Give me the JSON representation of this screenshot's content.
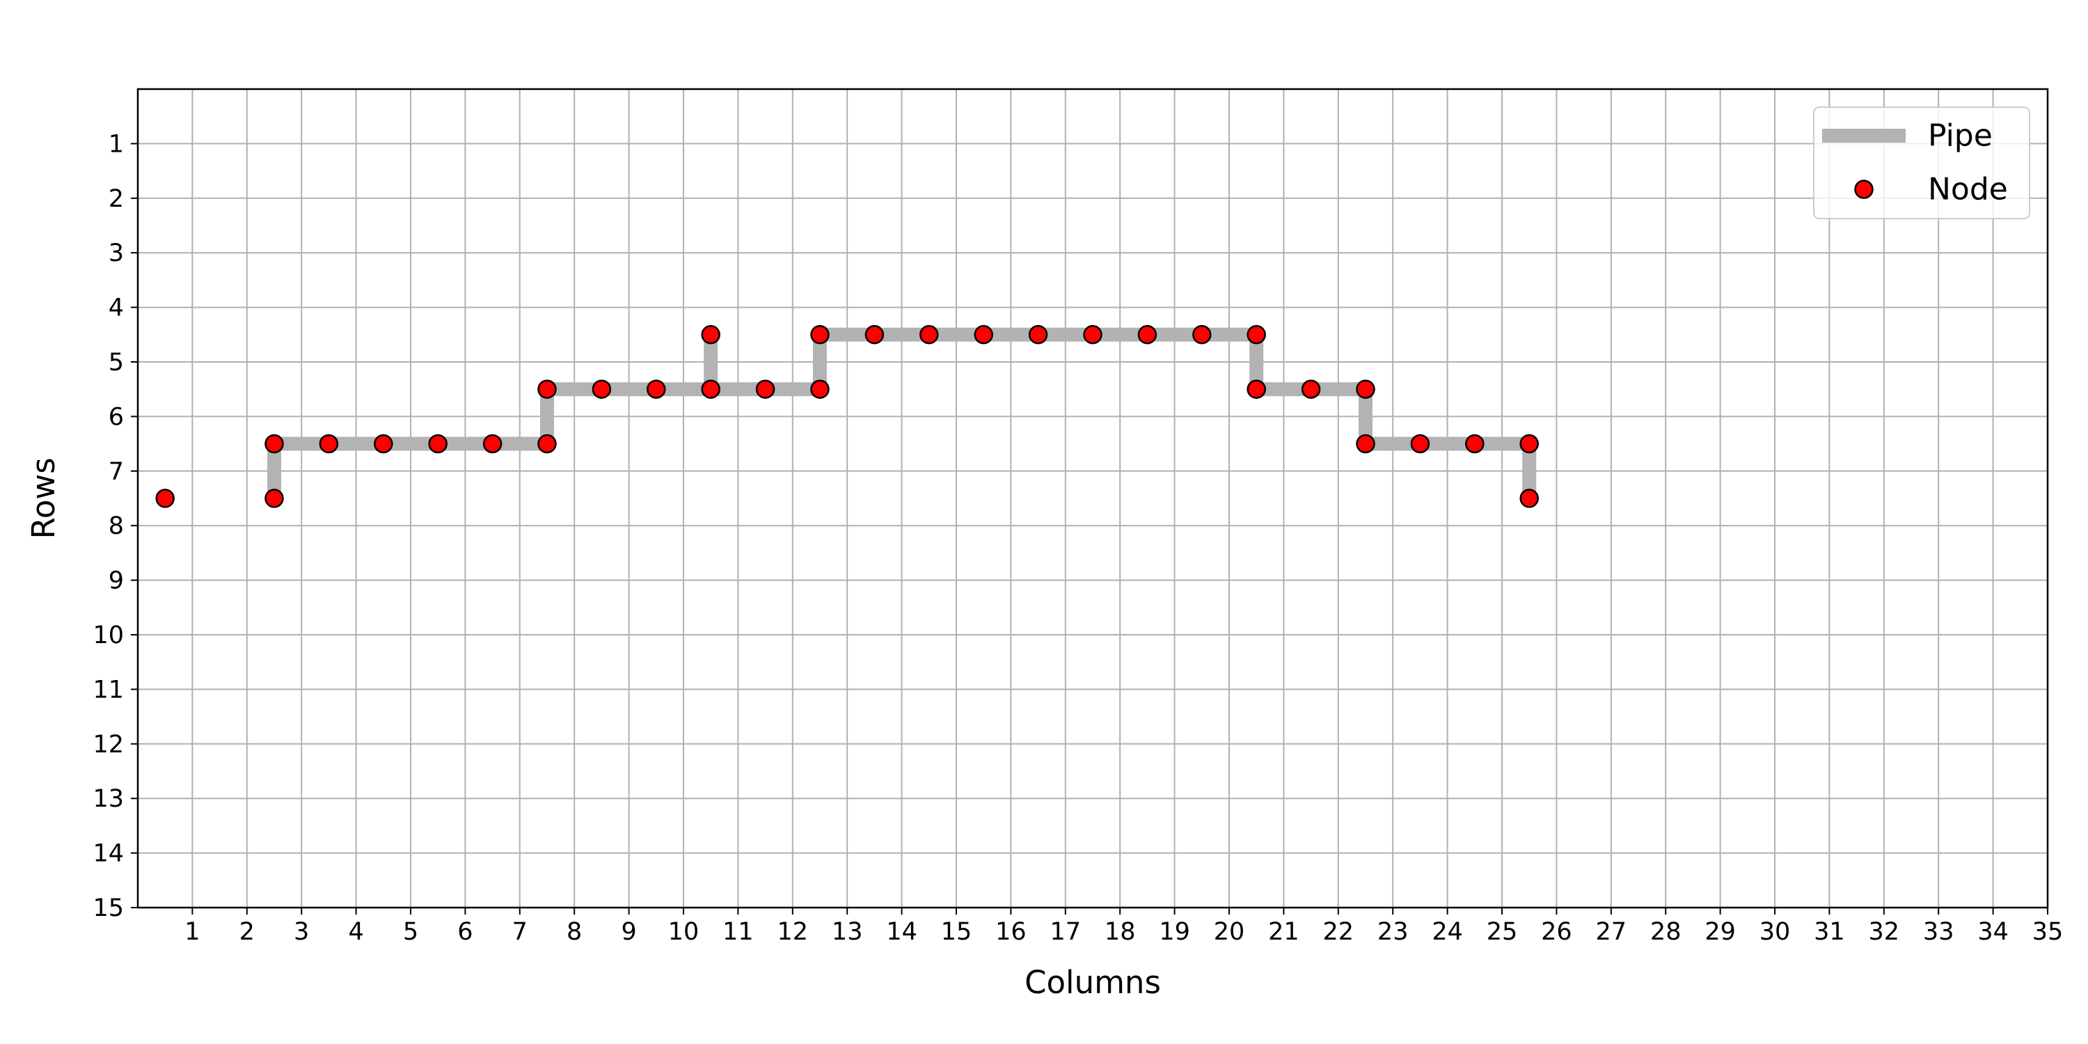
{
  "chart_data": {
    "type": "scatter",
    "title": "",
    "xlabel": "Columns",
    "ylabel": "Rows",
    "xlim": [
      0,
      35
    ],
    "ylim": [
      15,
      0
    ],
    "y_inverted": true,
    "grid": true,
    "legend_position": "top-right",
    "xticks": [
      1,
      2,
      3,
      4,
      5,
      6,
      7,
      8,
      9,
      10,
      11,
      12,
      13,
      14,
      15,
      16,
      17,
      18,
      19,
      20,
      21,
      22,
      23,
      24,
      25,
      26,
      27,
      28,
      29,
      30,
      31,
      32,
      33,
      34,
      35
    ],
    "yticks": [
      1,
      2,
      3,
      4,
      5,
      6,
      7,
      8,
      9,
      10,
      11,
      12,
      13,
      14,
      15
    ],
    "colors": {
      "pipe": "#b3b3b3",
      "node_fill": "#ff0000",
      "node_edge": "#000000",
      "grid": "#b0b0b0"
    },
    "series": [
      {
        "name": "Pipe",
        "kind": "line",
        "segments": [
          [
            [
              2.5,
              7.5
            ],
            [
              2.5,
              6.5
            ],
            [
              7.5,
              6.5
            ],
            [
              7.5,
              5.5
            ],
            [
              12.5,
              5.5
            ],
            [
              12.5,
              4.5
            ],
            [
              20.5,
              4.5
            ],
            [
              20.5,
              5.5
            ],
            [
              22.5,
              5.5
            ],
            [
              22.5,
              6.5
            ],
            [
              25.5,
              6.5
            ],
            [
              25.5,
              7.5
            ]
          ],
          [
            [
              10.5,
              4.5
            ],
            [
              10.5,
              5.5
            ]
          ]
        ]
      },
      {
        "name": "Node",
        "kind": "scatter",
        "points": [
          [
            0.5,
            7.5
          ],
          [
            2.5,
            7.5
          ],
          [
            2.5,
            6.5
          ],
          [
            3.5,
            6.5
          ],
          [
            4.5,
            6.5
          ],
          [
            5.5,
            6.5
          ],
          [
            6.5,
            6.5
          ],
          [
            7.5,
            6.5
          ],
          [
            7.5,
            5.5
          ],
          [
            8.5,
            5.5
          ],
          [
            9.5,
            5.5
          ],
          [
            10.5,
            5.5
          ],
          [
            11.5,
            5.5
          ],
          [
            12.5,
            5.5
          ],
          [
            10.5,
            4.5
          ],
          [
            12.5,
            4.5
          ],
          [
            13.5,
            4.5
          ],
          [
            14.5,
            4.5
          ],
          [
            15.5,
            4.5
          ],
          [
            16.5,
            4.5
          ],
          [
            17.5,
            4.5
          ],
          [
            18.5,
            4.5
          ],
          [
            19.5,
            4.5
          ],
          [
            20.5,
            4.5
          ],
          [
            20.5,
            5.5
          ],
          [
            21.5,
            5.5
          ],
          [
            22.5,
            5.5
          ],
          [
            22.5,
            6.5
          ],
          [
            23.5,
            6.5
          ],
          [
            24.5,
            6.5
          ],
          [
            25.5,
            6.5
          ],
          [
            25.5,
            7.5
          ]
        ]
      }
    ]
  }
}
